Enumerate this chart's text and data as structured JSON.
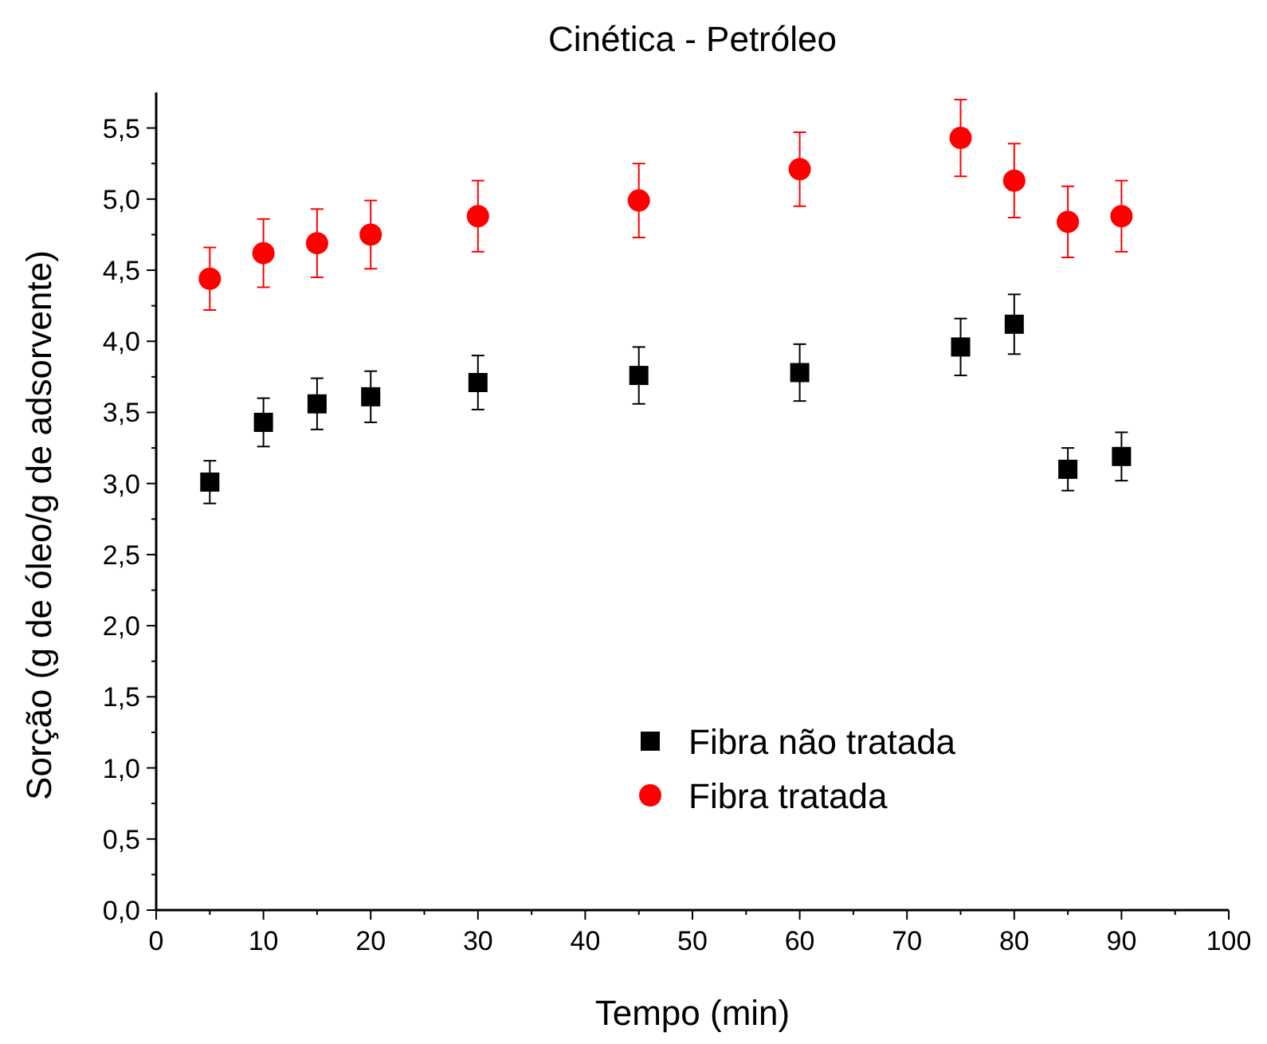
{
  "chart_data": {
    "type": "scatter",
    "title": "Cinética - Petróleo",
    "xlabel": "Tempo (min)",
    "ylabel": "Sorção (g de óleo/g de adsorvente)",
    "xlim": [
      0,
      100
    ],
    "xticks": [
      0,
      {
        "value": 5,
        "label": null
      },
      10,
      {
        "value": 15,
        "label": null
      },
      20,
      {
        "value": 25,
        "label": null
      },
      30,
      {
        "value": 35,
        "label": null
      },
      40,
      {
        "value": 45,
        "label": null
      },
      50,
      {
        "value": 55,
        "label": null
      },
      60,
      {
        "value": 65,
        "label": null
      },
      70,
      {
        "value": 75,
        "label": null
      },
      80,
      {
        "value": 85,
        "label": null
      },
      90,
      {
        "value": 95,
        "label": null
      },
      100
    ],
    "ylim": [
      0,
      5.75
    ],
    "yticks": [
      {
        "value": 0,
        "label": "0,0"
      },
      {
        "value": 0.25,
        "label": null
      },
      {
        "value": 0.5,
        "label": "0,5"
      },
      {
        "value": 0.75,
        "label": null
      },
      {
        "value": 1,
        "label": "1,0"
      },
      {
        "value": 1.25,
        "label": null
      },
      {
        "value": 1.5,
        "label": "1,5"
      },
      {
        "value": 1.75,
        "label": null
      },
      {
        "value": 2,
        "label": "2,0"
      },
      {
        "value": 2.25,
        "label": null
      },
      {
        "value": 2.5,
        "label": "2,5"
      },
      {
        "value": 2.75,
        "label": null
      },
      {
        "value": 3,
        "label": "3,0"
      },
      {
        "value": 3.25,
        "label": null
      },
      {
        "value": 3.5,
        "label": "3,5"
      },
      {
        "value": 3.75,
        "label": null
      },
      {
        "value": 4,
        "label": "4,0"
      },
      {
        "value": 4.25,
        "label": null
      },
      {
        "value": 4.5,
        "label": "4,5"
      },
      {
        "value": 4.75,
        "label": null
      },
      {
        "value": 5,
        "label": "5,0"
      },
      {
        "value": 5.25,
        "label": null
      },
      {
        "value": 5.5,
        "label": "5,5"
      }
    ],
    "x": [
      5,
      10,
      15,
      20,
      30,
      45,
      60,
      75,
      80,
      85,
      90
    ],
    "legend": "bottom",
    "grid": false,
    "series": [
      {
        "name": "Fibra não tratada",
        "color": "#000000",
        "marker": "square",
        "values": [
          3.01,
          3.43,
          3.56,
          3.61,
          3.71,
          3.76,
          3.78,
          3.96,
          4.12,
          3.1,
          3.19
        ],
        "errors": [
          0.15,
          0.17,
          0.18,
          0.18,
          0.19,
          0.2,
          0.2,
          0.2,
          0.21,
          0.15,
          0.17
        ]
      },
      {
        "name": "Fibra tratada",
        "color": "#ff0000",
        "marker": "circle",
        "values": [
          4.44,
          4.62,
          4.69,
          4.75,
          4.88,
          4.99,
          5.21,
          5.43,
          5.13,
          4.84,
          4.88
        ],
        "errors": [
          0.22,
          0.24,
          0.24,
          0.24,
          0.25,
          0.26,
          0.26,
          0.27,
          0.26,
          0.25,
          0.25
        ]
      }
    ]
  }
}
